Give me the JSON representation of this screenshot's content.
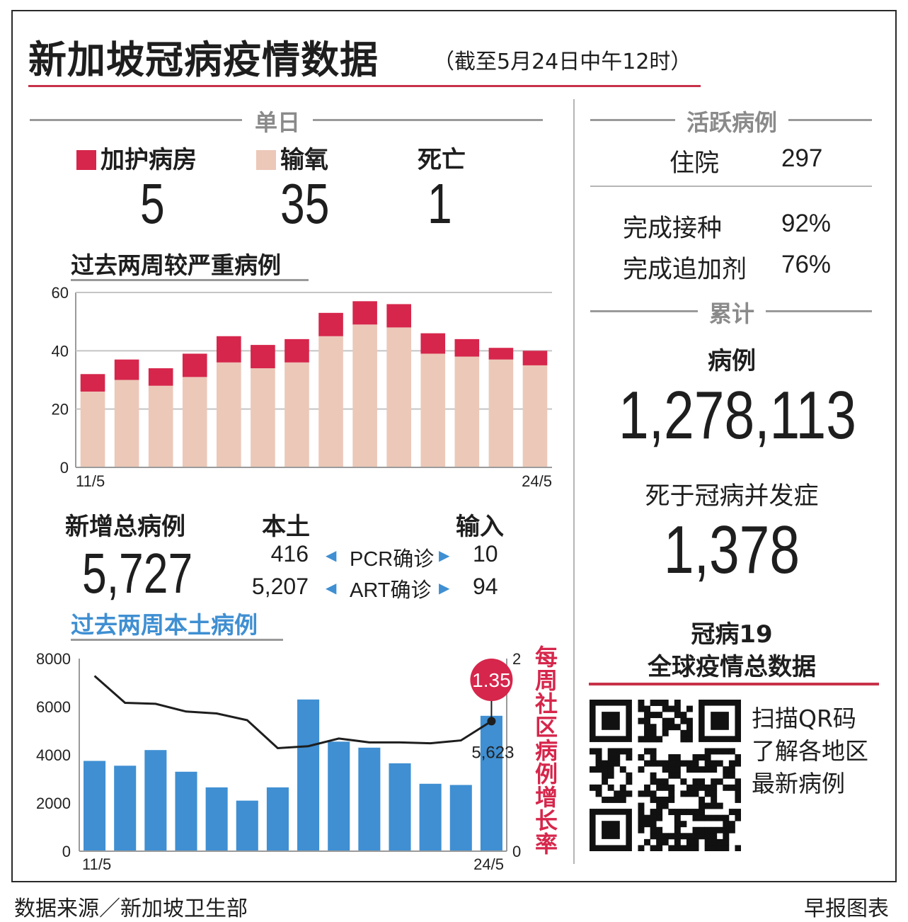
{
  "header": {
    "title": "新加坡冠病疫情数据",
    "subtitle": "（截至5月24日中午12时）"
  },
  "daily": {
    "heading": "单日",
    "icu_label": "加护病房",
    "icu_value": "5",
    "oxygen_label": "输氧",
    "oxygen_value": "35",
    "death_label": "死亡",
    "death_value": "1"
  },
  "new_cases": {
    "total_label": "新增总病例",
    "total_value": "5,727",
    "local_label": "本土",
    "imported_label": "输入",
    "pcr_label": "PCR确诊",
    "art_label": "ART确诊",
    "pcr_local": "416",
    "pcr_imported": "10",
    "art_local": "5,207",
    "art_imported": "94"
  },
  "active": {
    "heading": "活跃病例",
    "hospital_label": "住院",
    "hospital_value": "297",
    "vaccinated_label": "完成接种",
    "vaccinated_value": "92%",
    "booster_label": "完成追加剂",
    "booster_value": "76%"
  },
  "cumulative": {
    "heading": "累计",
    "cases_label": "病例",
    "cases_value": "1,278,113",
    "deaths_label": "死于冠病并发症",
    "deaths_value": "1,378"
  },
  "global": {
    "title_line1": "冠病19",
    "title_line2": "全球疫情总数据",
    "qr_text_line1": "扫描QR码",
    "qr_text_line2": "了解各地区",
    "qr_text_line3": "最新病例"
  },
  "footer": {
    "source": "数据来源／新加坡卫生部",
    "credit": "早报图表"
  },
  "colors": {
    "accent_red": "#d6264b",
    "oxygen_pink": "#ecc8b8",
    "bar_blue": "#3f8fd2",
    "line_black": "#1e1e1e"
  },
  "chart_data": [
    {
      "type": "bar",
      "stacked": true,
      "title": "过去两周较严重病例",
      "x_tick_labels": [
        "11/5",
        "24/5"
      ],
      "ylim": [
        0,
        60
      ],
      "y_ticks": [
        "0",
        "20",
        "40",
        "60"
      ],
      "grid": true,
      "series": [
        {
          "name": "输氧",
          "color": "#ecc8b8",
          "values": [
            26,
            30,
            28,
            31,
            36,
            34,
            36,
            45,
            49,
            48,
            39,
            38,
            37,
            35
          ]
        },
        {
          "name": "加护病房",
          "color": "#d6264b",
          "values": [
            6,
            7,
            6,
            8,
            9,
            8,
            8,
            8,
            8,
            8,
            7,
            6,
            4,
            5
          ]
        }
      ]
    },
    {
      "type": "bar",
      "title": "过去两周本土病例",
      "x_tick_labels": [
        "11/5",
        "24/5"
      ],
      "ylim": [
        0,
        8000
      ],
      "y_ticks": [
        "0",
        "2000",
        "4000",
        "6000",
        "8000"
      ],
      "values": [
        3750,
        3550,
        4200,
        3300,
        2650,
        2100,
        2650,
        6300,
        4550,
        4300,
        3650,
        2800,
        2750,
        5623
      ],
      "last_value_label": "5,623",
      "secondary_axis": {
        "label": "每周社区病例增长率",
        "ylim": [
          0,
          2
        ],
        "y_ticks": [
          "0",
          "2"
        ],
        "line_values": [
          1.82,
          1.54,
          1.53,
          1.45,
          1.43,
          1.36,
          1.07,
          1.09,
          1.17,
          1.13,
          1.13,
          1.12,
          1.15,
          1.35
        ],
        "highlight_label": "1.35"
      }
    }
  ]
}
